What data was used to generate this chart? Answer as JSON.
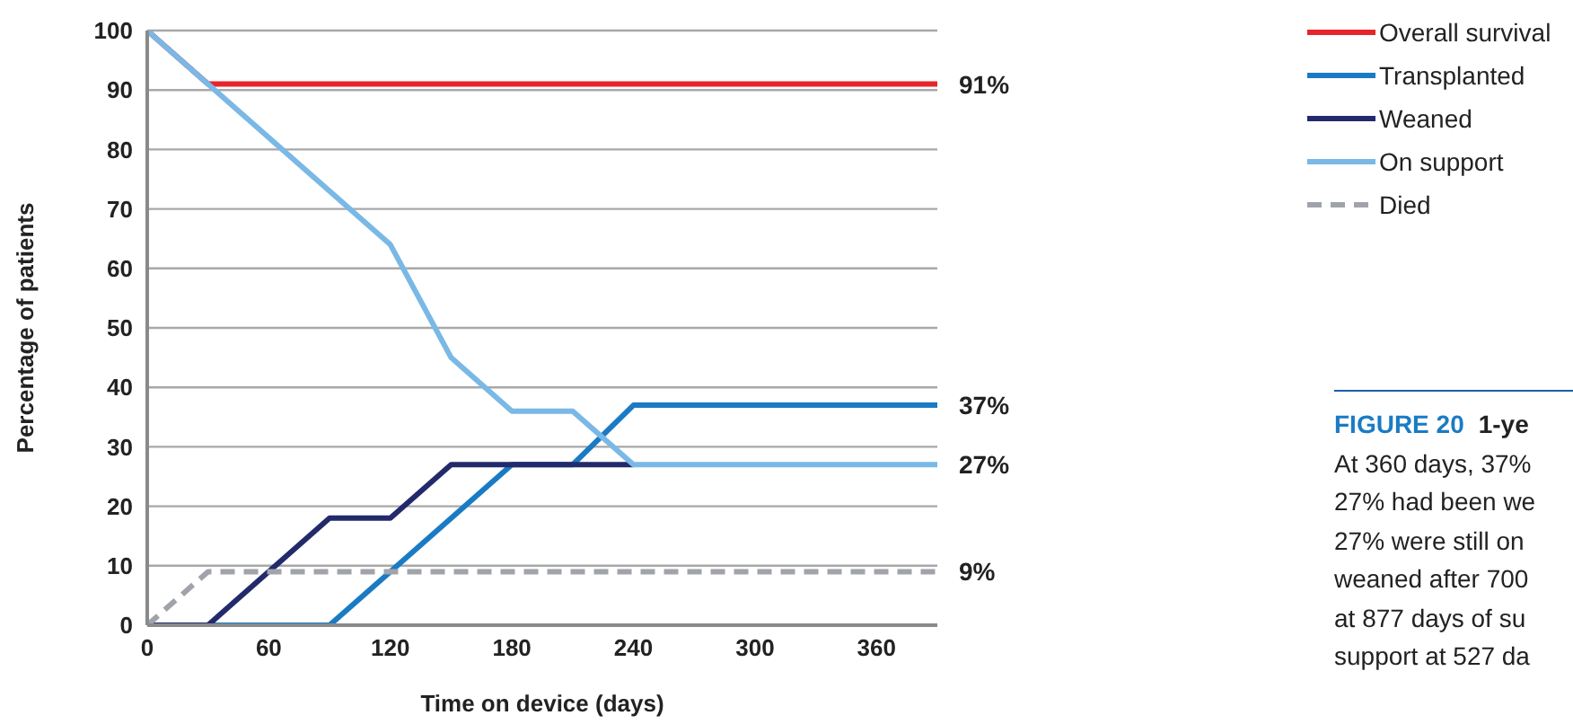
{
  "chart_data": {
    "type": "line",
    "title": "FIGURE 20",
    "subtitle": "1-ye",
    "xlabel": "Time on device (days)",
    "ylabel": "Percentage of patients",
    "xlim": [
      0,
      390
    ],
    "xticks": [
      0,
      60,
      120,
      180,
      240,
      300,
      360
    ],
    "ylim": [
      0,
      100
    ],
    "yticks": [
      0,
      10,
      20,
      30,
      40,
      50,
      60,
      70,
      80,
      90,
      100
    ],
    "grid": "y",
    "legend": "top right",
    "marker": "none",
    "series": [
      {
        "name": "Overall survival",
        "color": "#e8242b",
        "x": [
          0,
          30,
          390
        ],
        "values": [
          100,
          91,
          91
        ],
        "value_labels": [
          null,
          null,
          "91%"
        ]
      },
      {
        "name": "Transplanted",
        "color": "#1a7bc4",
        "x": [
          0,
          90,
          180,
          210,
          240,
          390
        ],
        "values": [
          0,
          0,
          27,
          27,
          37,
          37
        ],
        "value_labels": [
          null,
          null,
          null,
          null,
          null,
          "37%"
        ]
      },
      {
        "name": "Weaned",
        "color": "#232a6b",
        "x": [
          0,
          30,
          90,
          120,
          150,
          240
        ],
        "values": [
          0,
          0,
          18,
          18,
          27,
          27
        ]
      },
      {
        "name": "On support",
        "color": "#7ab8e6",
        "x": [
          0,
          120,
          150,
          180,
          210,
          240,
          390
        ],
        "values": [
          100,
          64,
          45,
          36,
          36,
          27,
          27
        ],
        "value_labels": [
          null,
          null,
          null,
          null,
          null,
          null,
          "27%"
        ]
      },
      {
        "name": "Died",
        "color": "#a0a4aa",
        "line_style": "dashed",
        "x": [
          0,
          30,
          390
        ],
        "values": [
          0,
          9,
          9
        ],
        "value_labels": [
          null,
          null,
          "9%"
        ]
      }
    ],
    "annotations": [
      "At 360 days, 37%",
      "27% had been we",
      "27% were still on",
      "weaned after 700",
      "at 877 days of su",
      "support at 527 da"
    ]
  }
}
